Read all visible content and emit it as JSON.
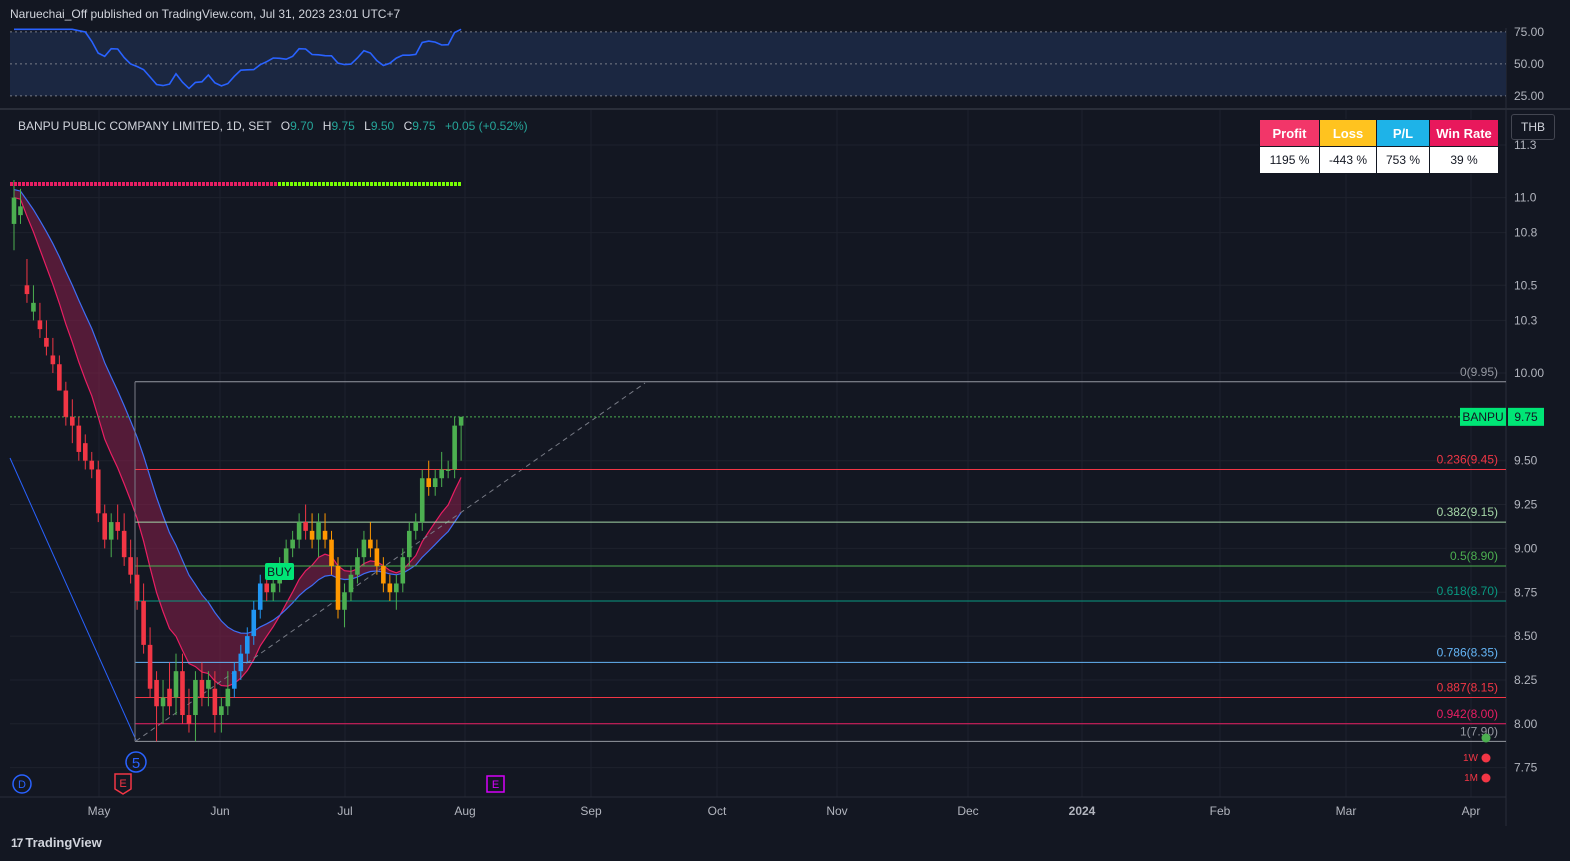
{
  "header": {
    "published": "Naruechai_Off published on TradingView.com, Jul 31, 2023 23:01 UTC+7"
  },
  "footer": {
    "brand": "TradingView",
    "brand_mark": "17"
  },
  "legend": {
    "symbol": "BANPU PUBLIC COMPANY LIMITED, 1D, SET",
    "o_label": "O",
    "o": "9.70",
    "h_label": "H",
    "h": "9.75",
    "l_label": "L",
    "l": "9.50",
    "c_label": "C",
    "c": "9.75",
    "change": "+0.05 (+0.52%)"
  },
  "currency": "THB",
  "stats_table": {
    "headers": [
      "Profit",
      "Loss",
      "P/L",
      "Win Rate"
    ],
    "values": [
      "1195 %",
      "-443 %",
      "753 %",
      "39 %"
    ],
    "colors": [
      "#f23669",
      "#ffc31f",
      "#1eb3e8",
      "#e8185c"
    ]
  },
  "chart_data": {
    "type": "candlestick",
    "ticker": "BANPU",
    "last_price": "9.75",
    "x_ticks": [
      "May",
      "Jun",
      "Jul",
      "Aug",
      "Sep",
      "Oct",
      "Nov",
      "Dec",
      "2024",
      "Feb",
      "Mar",
      "Apr"
    ],
    "y_ticks": [
      "11.3",
      "11.0",
      "10.8",
      "10.5",
      "10.3",
      "10.00",
      "9.50",
      "9.25",
      "9.00",
      "8.75",
      "8.50",
      "8.25",
      "8.00",
      "7.75"
    ],
    "ylim": [
      7.65,
      11.4
    ],
    "fib_levels": [
      {
        "label": "0(9.95)",
        "value": 9.95,
        "color": "#9598a1"
      },
      {
        "label": "0.236(9.45)",
        "value": 9.45,
        "color": "#f23645"
      },
      {
        "label": "0.382(9.15)",
        "value": 9.15,
        "color": "#a5d6a7"
      },
      {
        "label": "0.5(8.90)",
        "value": 8.9,
        "color": "#4caf50"
      },
      {
        "label": "0.618(8.70)",
        "value": 8.7,
        "color": "#089981"
      },
      {
        "label": "0.786(8.35)",
        "value": 8.35,
        "color": "#64b5f6"
      },
      {
        "label": "0.887(8.15)",
        "value": 8.15,
        "color": "#f23645"
      },
      {
        "label": "0.942(8.00)",
        "value": 8.0,
        "color": "#e91e63"
      },
      {
        "label": "1(7.90)",
        "value": 7.9,
        "color": "#9598a1"
      }
    ],
    "markers": {
      "buy": "BUY",
      "wave": "5",
      "dividend": "D",
      "earnings": "E",
      "tf_1w": "1W",
      "tf_1m": "1M"
    },
    "oscillator": {
      "ticks": [
        "75.00",
        "50.00",
        "25.00"
      ],
      "range": [
        20,
        78
      ]
    },
    "candles": [
      [
        10.85,
        11.1,
        10.7,
        11.0
      ],
      [
        10.9,
        11.05,
        10.85,
        10.95
      ],
      [
        10.5,
        10.65,
        10.4,
        10.45
      ],
      [
        10.35,
        10.5,
        10.3,
        10.4
      ],
      [
        10.3,
        10.4,
        10.2,
        10.25
      ],
      [
        10.2,
        10.3,
        10.1,
        10.15
      ],
      [
        10.1,
        10.2,
        10.0,
        10.05
      ],
      [
        10.05,
        10.1,
        9.9,
        9.9
      ],
      [
        9.9,
        9.95,
        9.7,
        9.75
      ],
      [
        9.75,
        9.85,
        9.6,
        9.7
      ],
      [
        9.7,
        9.75,
        9.5,
        9.55
      ],
      [
        9.6,
        9.65,
        9.45,
        9.5
      ],
      [
        9.5,
        9.55,
        9.4,
        9.45
      ],
      [
        9.45,
        9.5,
        9.15,
        9.2
      ],
      [
        9.2,
        9.25,
        9.0,
        9.05
      ],
      [
        9.05,
        9.2,
        8.95,
        9.15
      ],
      [
        9.15,
        9.25,
        9.05,
        9.1
      ],
      [
        9.1,
        9.2,
        8.9,
        8.95
      ],
      [
        8.95,
        9.05,
        8.8,
        8.85
      ],
      [
        8.85,
        8.95,
        8.65,
        8.7
      ],
      [
        8.7,
        8.8,
        8.4,
        8.45
      ],
      [
        8.45,
        8.55,
        8.15,
        8.2
      ],
      [
        8.25,
        8.3,
        7.9,
        8.1
      ],
      [
        8.1,
        8.25,
        8.0,
        8.15
      ],
      [
        8.2,
        8.35,
        8.05,
        8.1
      ],
      [
        8.15,
        8.4,
        8.05,
        8.3
      ],
      [
        8.3,
        8.4,
        8.0,
        8.05
      ],
      [
        8.05,
        8.2,
        7.95,
        8.0
      ],
      [
        8.05,
        8.3,
        7.9,
        8.25
      ],
      [
        8.25,
        8.35,
        8.1,
        8.15
      ],
      [
        8.2,
        8.3,
        8.1,
        8.25
      ],
      [
        8.2,
        8.3,
        7.95,
        8.05
      ],
      [
        8.05,
        8.15,
        7.95,
        8.1
      ],
      [
        8.1,
        8.3,
        8.05,
        8.2
      ],
      [
        8.2,
        8.35,
        8.15,
        8.3
      ],
      [
        8.3,
        8.45,
        8.25,
        8.4
      ],
      [
        8.4,
        8.55,
        8.35,
        8.5
      ],
      [
        8.5,
        8.7,
        8.45,
        8.65
      ],
      [
        8.65,
        8.85,
        8.6,
        8.8
      ],
      [
        8.8,
        8.9,
        8.7,
        8.75
      ],
      [
        8.75,
        8.85,
        8.7,
        8.8
      ],
      [
        8.8,
        8.95,
        8.75,
        8.9
      ],
      [
        8.9,
        9.05,
        8.85,
        9.0
      ],
      [
        9.0,
        9.1,
        8.95,
        9.05
      ],
      [
        9.05,
        9.2,
        9.0,
        9.15
      ],
      [
        9.15,
        9.25,
        9.05,
        9.1
      ],
      [
        9.1,
        9.2,
        9.0,
        9.05
      ],
      [
        9.05,
        9.2,
        8.95,
        9.15
      ],
      [
        9.1,
        9.2,
        9.0,
        9.05
      ],
      [
        9.05,
        9.1,
        8.85,
        8.9
      ],
      [
        8.9,
        8.95,
        8.6,
        8.65
      ],
      [
        8.65,
        8.8,
        8.55,
        8.75
      ],
      [
        8.75,
        8.9,
        8.7,
        8.85
      ],
      [
        8.85,
        9.0,
        8.8,
        8.95
      ],
      [
        8.95,
        9.1,
        8.9,
        9.05
      ],
      [
        9.05,
        9.15,
        8.95,
        9.0
      ],
      [
        9.0,
        9.05,
        8.85,
        8.9
      ],
      [
        8.9,
        8.95,
        8.75,
        8.8
      ],
      [
        8.8,
        8.85,
        8.7,
        8.75
      ],
      [
        8.75,
        8.85,
        8.65,
        8.8
      ],
      [
        8.8,
        9.0,
        8.75,
        8.95
      ],
      [
        8.95,
        9.15,
        8.9,
        9.1
      ],
      [
        9.1,
        9.2,
        9.05,
        9.15
      ],
      [
        9.15,
        9.45,
        9.1,
        9.4
      ],
      [
        9.4,
        9.5,
        9.3,
        9.35
      ],
      [
        9.35,
        9.45,
        9.3,
        9.4
      ],
      [
        9.4,
        9.55,
        9.35,
        9.45
      ],
      [
        9.45,
        9.5,
        9.4,
        9.45
      ],
      [
        9.45,
        9.75,
        9.4,
        9.7
      ],
      [
        9.7,
        9.75,
        9.5,
        9.75
      ]
    ]
  }
}
